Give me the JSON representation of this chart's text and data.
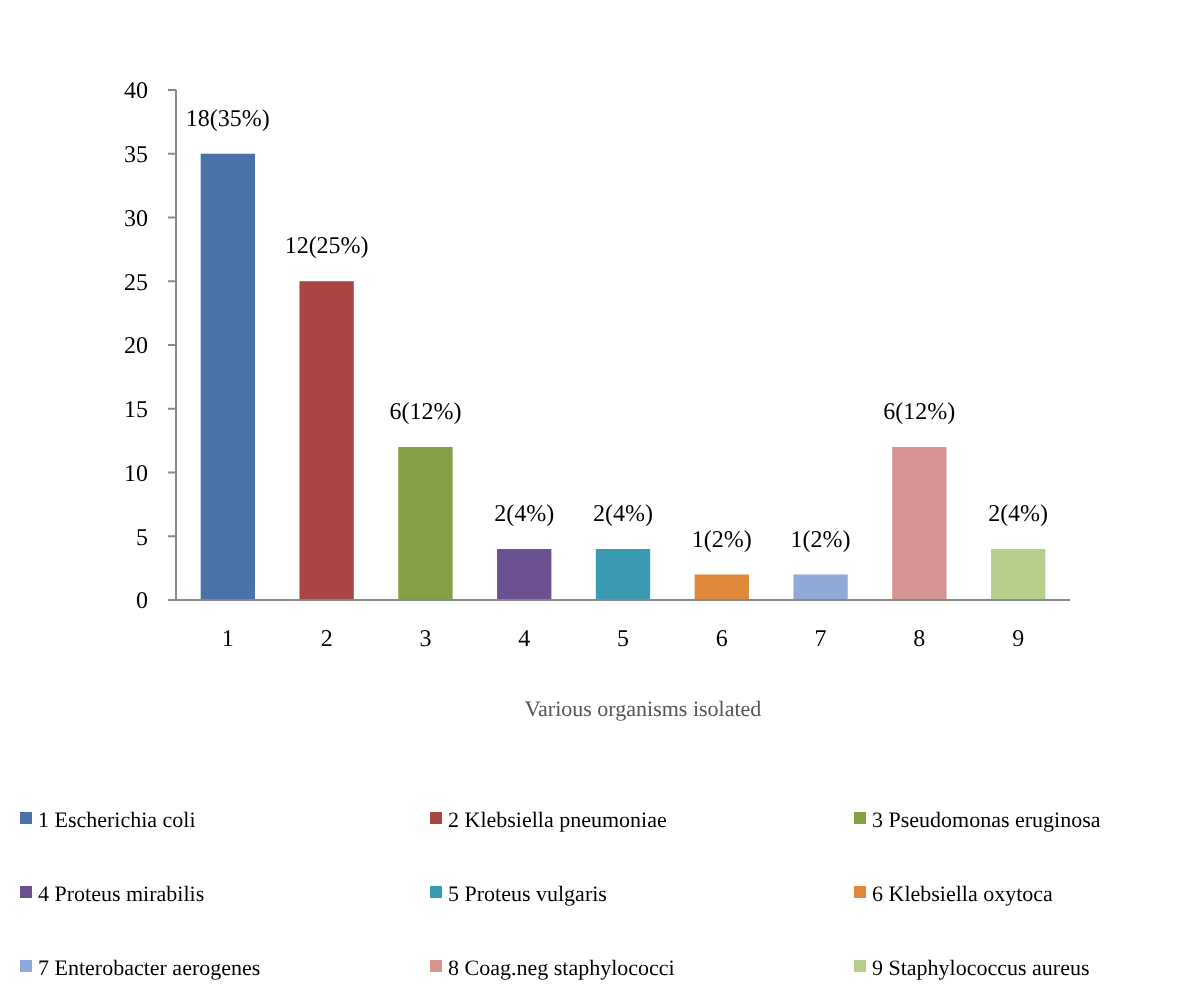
{
  "chart_data": {
    "type": "bar",
    "xlabel": "Various organisms isolated",
    "categories": [
      "1",
      "2",
      "3",
      "4",
      "5",
      "6",
      "7",
      "8",
      "9"
    ],
    "ylim": [
      0,
      40
    ],
    "yticks": [
      0,
      5,
      10,
      15,
      20,
      25,
      30,
      35,
      40
    ],
    "grid": false,
    "legend": "bottom",
    "series": [
      {
        "name": "1 Escherichia coli",
        "color": "#4a72a8",
        "values": [
          35,
          null,
          null,
          null,
          null,
          null,
          null,
          null,
          null
        ],
        "value_labels": [
          "18(35%)",
          null,
          null,
          null,
          null,
          null,
          null,
          null,
          null
        ]
      },
      {
        "name": "2 Klebsiella pneumoniae",
        "color": "#a94643",
        "values": [
          null,
          25,
          null,
          null,
          null,
          null,
          null,
          null,
          null
        ],
        "value_labels": [
          null,
          "12(25%)",
          null,
          null,
          null,
          null,
          null,
          null,
          null
        ]
      },
      {
        "name": "3 Pseudomonas eruginosa",
        "color": "#84a046",
        "values": [
          null,
          null,
          12,
          null,
          null,
          null,
          null,
          null,
          null
        ],
        "value_labels": [
          null,
          null,
          "6(12%)",
          null,
          null,
          null,
          null,
          null,
          null
        ]
      },
      {
        "name": "4 Proteus mirabilis",
        "color": "#6c5190",
        "values": [
          null,
          null,
          null,
          4,
          null,
          null,
          null,
          null,
          null
        ],
        "value_labels": [
          null,
          null,
          null,
          "2(4%)",
          null,
          null,
          null,
          null,
          null
        ]
      },
      {
        "name": "5 Proteus vulgaris",
        "color": "#3a9bb0",
        "values": [
          null,
          null,
          null,
          null,
          4,
          null,
          null,
          null,
          null
        ],
        "value_labels": [
          null,
          null,
          null,
          null,
          "2(4%)",
          null,
          null,
          null,
          null
        ]
      },
      {
        "name": "6 Klebsiella  oxytoca",
        "color": "#e0893c",
        "values": [
          null,
          null,
          null,
          null,
          null,
          2,
          null,
          null,
          null
        ],
        "value_labels": [
          null,
          null,
          null,
          null,
          null,
          "1(2%)",
          null,
          null,
          null
        ]
      },
      {
        "name": "7 Enterobacter aerogenes",
        "color": "#91a9d6",
        "values": [
          null,
          null,
          null,
          null,
          null,
          null,
          2,
          null,
          null
        ],
        "value_labels": [
          null,
          null,
          null,
          null,
          null,
          null,
          "1(2%)",
          null,
          null
        ]
      },
      {
        "name": "8 Coag.neg staphylococci",
        "color": "#d69593",
        "values": [
          null,
          null,
          null,
          null,
          null,
          null,
          null,
          12,
          null
        ],
        "value_labels": [
          null,
          null,
          null,
          null,
          null,
          null,
          null,
          "6(12%)",
          null
        ]
      },
      {
        "name": "9 Staphylococcus aureus",
        "color": "#b6cf8d",
        "values": [
          null,
          null,
          null,
          null,
          null,
          null,
          null,
          null,
          4
        ],
        "value_labels": [
          null,
          null,
          null,
          null,
          null,
          null,
          null,
          null,
          "2(4%)"
        ]
      }
    ]
  }
}
